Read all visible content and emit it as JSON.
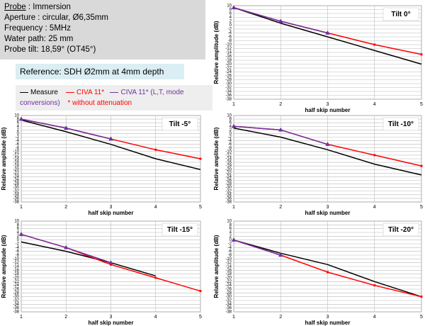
{
  "info": {
    "probe_label": "Probe",
    "probe_value": ": Immersion",
    "lines": [
      "Aperture : circular, Ø6,35mm",
      "Frequency : 5MHz",
      "Water path: 25 mm",
      "Probe tilt: 18,59° (OT45°)"
    ]
  },
  "reference": "Reference: SDH Ø2mm at 4mm depth",
  "legend_note": "* without attenuation",
  "chart_data": [
    {
      "type": "line",
      "title": "Tilt 0°",
      "x_label": "half skip number",
      "y_label": "Relative amplitude (dB)",
      "x": [
        1,
        2,
        3,
        4,
        5
      ],
      "xlim": [
        1,
        5
      ],
      "xticks": [
        1,
        2,
        3,
        4,
        5
      ],
      "ylim": [
        -38,
        10
      ],
      "yticks": [
        10,
        8,
        6,
        4,
        2,
        0,
        -2,
        -4,
        -6,
        -8,
        -10,
        -12,
        -14,
        -16,
        -18,
        -20,
        -22,
        -24,
        -26,
        -28,
        -30,
        -32,
        -34,
        -36,
        -38
      ],
      "grid": true,
      "series": [
        {
          "name": "Measure",
          "color": "#000000",
          "marker": "none",
          "values": [
            9,
            1,
            -6,
            -13,
            -20
          ]
        },
        {
          "name": "CIVA 11*",
          "color": "#ff0000",
          "marker": "square",
          "values": [
            9,
            2,
            -4,
            -10,
            -15
          ]
        },
        {
          "name": "CIVA 11* (L,T, mode conversions)",
          "color": "#7030a0",
          "marker": "triangle",
          "values": [
            9,
            2,
            -4,
            null,
            null
          ]
        }
      ]
    },
    {
      "type": "line",
      "title": "Tilt -5°",
      "x_label": "half skip number",
      "y_label": "Relative amplitude (dB)",
      "x": [
        1,
        2,
        3,
        4,
        5
      ],
      "xlim": [
        1,
        5
      ],
      "xticks": [
        1,
        2,
        3,
        4,
        5
      ],
      "ylim": [
        -38,
        10
      ],
      "yticks": [
        10,
        8,
        6,
        4,
        2,
        0,
        -2,
        -4,
        -6,
        -8,
        -10,
        -12,
        -14,
        -16,
        -18,
        -20,
        -22,
        -24,
        -26,
        -28,
        -30,
        -32,
        -34,
        -36,
        -38
      ],
      "grid": true,
      "series": [
        {
          "color": "#000000",
          "marker": "none",
          "values": [
            7.5,
            1,
            -6,
            -14,
            -20
          ]
        },
        {
          "color": "#ff0000",
          "marker": "square",
          "values": [
            8,
            3,
            -3,
            -9,
            -14
          ]
        },
        {
          "color": "#7030a0",
          "marker": "triangle",
          "values": [
            8,
            3,
            -3,
            null,
            null
          ]
        }
      ]
    },
    {
      "type": "line",
      "title": "Tilt -10°",
      "x_label": "half skip number",
      "y_label": "Relative amplitude (dB)",
      "x": [
        1,
        2,
        3,
        4,
        5
      ],
      "xlim": [
        1,
        5
      ],
      "xticks": [
        1,
        2,
        3,
        4,
        5
      ],
      "ylim": [
        -38,
        10
      ],
      "yticks": [
        10,
        8,
        6,
        4,
        2,
        0,
        -2,
        -4,
        -6,
        -8,
        -10,
        -12,
        -14,
        -16,
        -18,
        -20,
        -22,
        -24,
        -26,
        -28,
        -30,
        -32,
        -34,
        -36,
        -38
      ],
      "grid": true,
      "series": [
        {
          "color": "#000000",
          "marker": "none",
          "values": [
            3,
            -2,
            -9,
            -17,
            -23
          ]
        },
        {
          "color": "#ff0000",
          "marker": "square",
          "values": [
            4,
            2,
            -6,
            -12,
            -18
          ]
        },
        {
          "color": "#7030a0",
          "marker": "triangle",
          "values": [
            4,
            2,
            -6,
            null,
            null
          ]
        }
      ]
    },
    {
      "type": "line",
      "title": "Tilt -15°",
      "x_label": "half skip number",
      "y_label": "Relative amplitude (dB)",
      "x": [
        1,
        2,
        3,
        4,
        5
      ],
      "xlim": [
        1,
        5
      ],
      "xticks": [
        1,
        2,
        3,
        4,
        5
      ],
      "ylim": [
        -38,
        10
      ],
      "yticks": [
        10,
        8,
        6,
        4,
        2,
        0,
        -2,
        -4,
        -6,
        -8,
        -10,
        -12,
        -14,
        -16,
        -18,
        -20,
        -22,
        -24,
        -26,
        -28,
        -30,
        -32,
        -34,
        -36,
        -38
      ],
      "grid": true,
      "series": [
        {
          "color": "#000000",
          "marker": "none",
          "values": [
            -1,
            -6,
            -12,
            -19,
            null
          ]
        },
        {
          "color": "#ff0000",
          "marker": "square",
          "values": [
            3,
            -4,
            -13,
            -20,
            -27
          ]
        },
        {
          "color": "#7030a0",
          "marker": "triangle",
          "values": [
            3,
            -4,
            -12,
            null,
            null
          ]
        }
      ]
    },
    {
      "type": "line",
      "title": "Tilt -20°",
      "x_label": "half skip number",
      "y_label": "Relative amplitude (dB)",
      "x": [
        1,
        2,
        3,
        4,
        5
      ],
      "xlim": [
        1,
        5
      ],
      "xticks": [
        1,
        2,
        3,
        4,
        5
      ],
      "ylim": [
        -38,
        10
      ],
      "yticks": [
        10,
        8,
        6,
        4,
        2,
        0,
        -2,
        -4,
        -6,
        -8,
        -10,
        -12,
        -14,
        -16,
        -18,
        -20,
        -22,
        -24,
        -26,
        -28,
        -30,
        -32,
        -34,
        -36,
        -38
      ],
      "grid": true,
      "series": [
        {
          "color": "#000000",
          "marker": "none",
          "values": [
            0,
            -7,
            -13,
            -22,
            -30
          ]
        },
        {
          "color": "#ff0000",
          "marker": "square",
          "values": [
            0,
            -8,
            -17,
            -24,
            -30
          ]
        },
        {
          "color": "#7030a0",
          "marker": "triangle",
          "values": [
            0,
            -8,
            null,
            null,
            null
          ]
        }
      ]
    }
  ]
}
